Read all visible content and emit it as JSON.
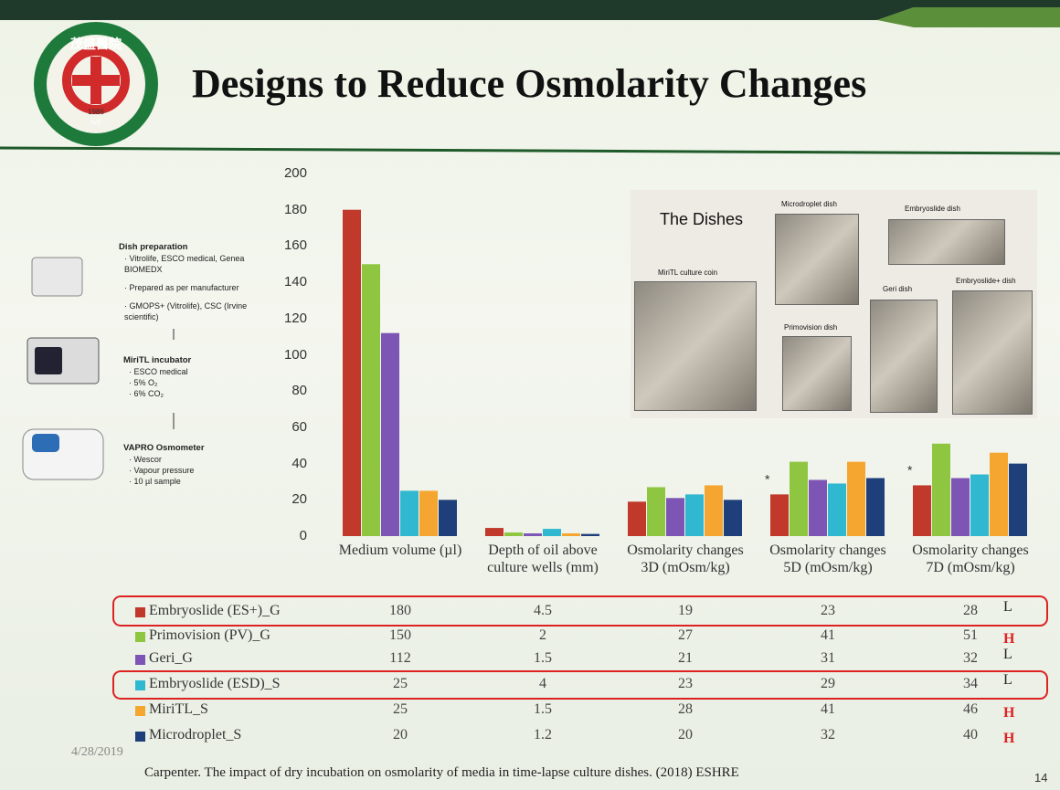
{
  "header": {
    "title": "Designs to Reduce Osmolarity Changes",
    "logo_text": "茂盛醫院",
    "logo_year": "1986",
    "logo_label": "IVF"
  },
  "sidebar": {
    "steps": [
      {
        "title": "Dish preparation",
        "items": [
          "Vitrolife, ESCO medical, Genea BIOMEDX",
          "Prepared as per manufacturer",
          "GMOPS+ (Vitrolife), CSC (Irvine scientific)"
        ]
      },
      {
        "title": "MiriTL incubator",
        "items": [
          "ESCO medical",
          "5% O₂",
          "6% CO₂"
        ]
      },
      {
        "title": "VAPRO Osmometer",
        "items": [
          "Wescor",
          "Vapour pressure",
          "10 µl sample"
        ]
      }
    ]
  },
  "inset": {
    "title": "The Dishes",
    "labels": [
      "MiriTL culture coin",
      "Microdroplet dish",
      "Embryoslide dish",
      "Geri dish",
      "Primovision dish",
      "Embryoslide+ dish"
    ]
  },
  "chart_data": {
    "type": "bar",
    "categories": [
      "Medium volume (µl)",
      "Depth of oil above culture wells (mm)",
      "Osmolarity changes 3D (mOsm/kg)",
      "Osmolarity changes 5D (mOsm/kg)",
      "Osmolarity changes 7D (mOsm/kg)"
    ],
    "series": [
      {
        "name": "Embryoslide (ES+)_G",
        "color": "#c0392b",
        "values": [
          180,
          4.5,
          19,
          23,
          28
        ],
        "rating": "L"
      },
      {
        "name": "Primovision (PV)_G",
        "color": "#8fc641",
        "values": [
          150,
          2,
          27,
          41,
          51
        ],
        "rating": "H"
      },
      {
        "name": "Geri_G",
        "color": "#7d55b5",
        "values": [
          112,
          1.5,
          21,
          31,
          32
        ],
        "rating": "L"
      },
      {
        "name": "Embryoslide (ESD)_S",
        "color": "#2fb8d0",
        "values": [
          25,
          4,
          23,
          29,
          34
        ],
        "rating": "L"
      },
      {
        "name": "MiriTL_S",
        "color": "#f5a631",
        "values": [
          25,
          1.5,
          28,
          41,
          46
        ],
        "rating": "H"
      },
      {
        "name": "Microdroplet_S",
        "color": "#1f3f7a",
        "values": [
          20,
          1.2,
          20,
          32,
          40
        ],
        "rating": "H"
      }
    ],
    "annotations": [
      "*",
      "*"
    ],
    "ylim": [
      0,
      200
    ],
    "yticks": [
      0,
      20,
      40,
      60,
      80,
      100,
      120,
      140,
      160,
      180,
      200
    ],
    "grid": false
  },
  "footer": {
    "date": "4/28/2019",
    "citation": "Carpenter. The impact of dry incubation on osmolarity of media in time-lapse culture dishes. (2018) ESHRE",
    "page": "14"
  }
}
